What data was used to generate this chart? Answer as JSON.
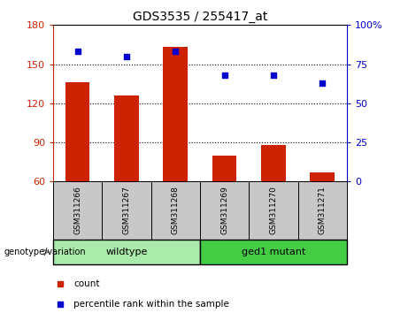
{
  "title": "GDS3535 / 255417_at",
  "samples": [
    "GSM311266",
    "GSM311267",
    "GSM311268",
    "GSM311269",
    "GSM311270",
    "GSM311271"
  ],
  "bar_values": [
    136,
    126,
    163,
    80,
    88,
    67
  ],
  "scatter_values": [
    83,
    80,
    83,
    68,
    68,
    63
  ],
  "bar_baseline": 60,
  "left_ylim": [
    60,
    180
  ],
  "right_ylim": [
    0,
    100
  ],
  "left_yticks": [
    60,
    90,
    120,
    150,
    180
  ],
  "right_yticks": [
    0,
    25,
    50,
    75,
    100
  ],
  "right_yticklabels": [
    "0",
    "25",
    "50",
    "75",
    "100%"
  ],
  "hlines": [
    90,
    120,
    150
  ],
  "bar_color": "#cc2200",
  "scatter_color": "#0000cc",
  "wildtype_color": "#aaeaaa",
  "mutant_color": "#44cc44",
  "label_bg_color": "#c8c8c8",
  "groups": [
    {
      "label": "wildtype",
      "indices": [
        0,
        1,
        2
      ]
    },
    {
      "label": "ged1 mutant",
      "indices": [
        3,
        4,
        5
      ]
    }
  ],
  "legend_count_label": "count",
  "legend_pct_label": "percentile rank within the sample",
  "genotype_label": "genotype/variation"
}
